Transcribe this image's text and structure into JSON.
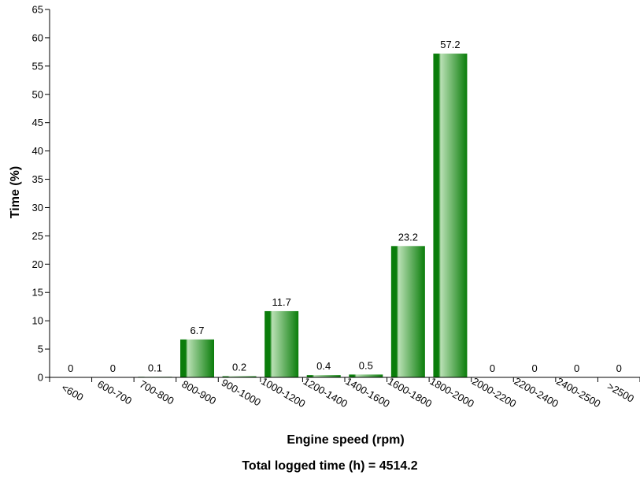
{
  "chart_data": {
    "type": "bar",
    "categories": [
      "<600",
      "600-700",
      "700-800",
      "800-900",
      "900-1000",
      "1000-1200",
      "1200-1400",
      "1400-1600",
      "1600-1800",
      "1800-2000",
      "2000-2200",
      "2200-2400",
      "2400-2500",
      ">2500"
    ],
    "values": [
      0,
      0,
      0.1,
      6.7,
      0.2,
      11.7,
      0.4,
      0.5,
      23.2,
      57.2,
      0,
      0,
      0,
      0
    ],
    "data_labels": [
      "0",
      "0",
      "0.1",
      "6.7",
      "0.2",
      "11.7",
      "0.4",
      "0.5",
      "23.2",
      "57.2",
      "0",
      "0",
      "0",
      "0"
    ],
    "xlabel": "Engine speed (rpm)",
    "ylabel": "Time (%)",
    "footer": "Total logged time (h) = 4514.2",
    "ylim": [
      0,
      65
    ],
    "yticks": [
      0,
      5,
      10,
      15,
      20,
      25,
      30,
      35,
      40,
      45,
      50,
      55,
      60,
      65
    ],
    "grid": false,
    "colors": {
      "bar_dark": "#0a7d0a",
      "bar_light": "#b9e0b4",
      "axis": "#000000"
    }
  }
}
